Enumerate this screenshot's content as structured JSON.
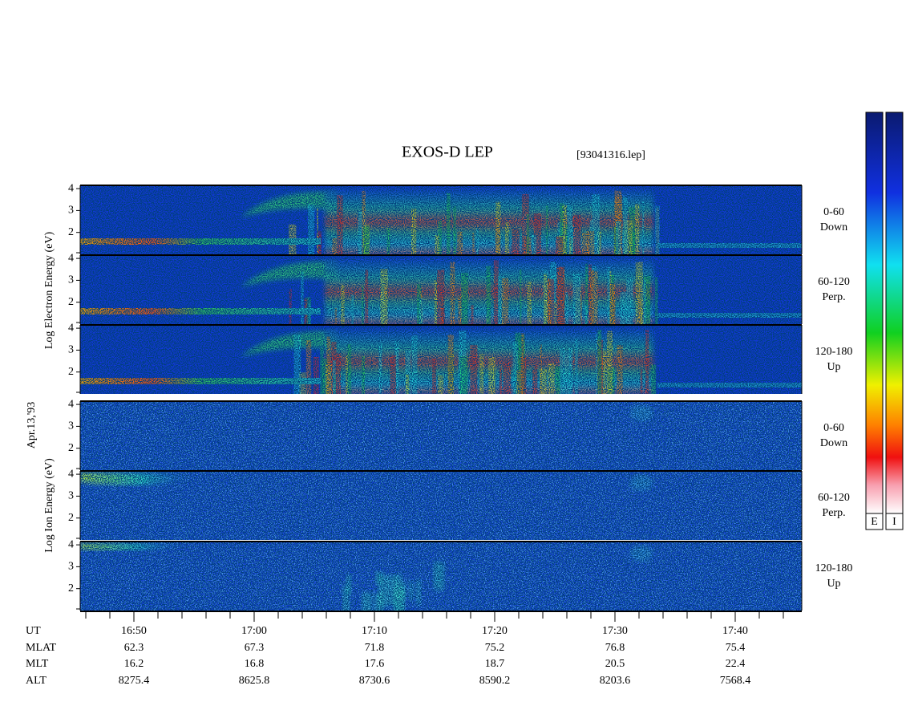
{
  "chart_data": {
    "type": "spectrogram",
    "title": "EXOS-D LEP",
    "subtitle": "[93041316.lep]",
    "date_label": "Apr.13,'93",
    "groups": [
      {
        "label": "Log Electron Energy (eV)"
      },
      {
        "label": "Log Ion Energy (eV)"
      }
    ],
    "panels": [
      {
        "species": "electron",
        "range": "0-60",
        "direction": "Down"
      },
      {
        "species": "electron",
        "range": "60-120",
        "direction": "Perp."
      },
      {
        "species": "electron",
        "range": "120-180",
        "direction": "Up"
      },
      {
        "species": "ion",
        "range": "0-60",
        "direction": "Down"
      },
      {
        "species": "ion",
        "range": "60-120",
        "direction": "Perp."
      },
      {
        "species": "ion",
        "range": "120-180",
        "direction": "Up"
      }
    ],
    "ylim": [
      1,
      4.15
    ],
    "yticks": [
      2,
      3,
      4
    ],
    "colorbars": [
      "E",
      "I"
    ],
    "ephemeris": [
      {
        "label": "UT",
        "values": [
          "16:50",
          "17:00",
          "17:10",
          "17:20",
          "17:30",
          "17:40"
        ]
      },
      {
        "label": "MLAT",
        "values": [
          62.3,
          67.3,
          71.8,
          75.2,
          76.8,
          75.4
        ]
      },
      {
        "label": "MLT",
        "values": [
          16.2,
          16.8,
          17.6,
          18.7,
          20.5,
          22.4
        ]
      },
      {
        "label": "ALT",
        "values": [
          8275.4,
          8625.8,
          8730.6,
          8590.2,
          8203.6,
          7568.4
        ]
      }
    ]
  }
}
